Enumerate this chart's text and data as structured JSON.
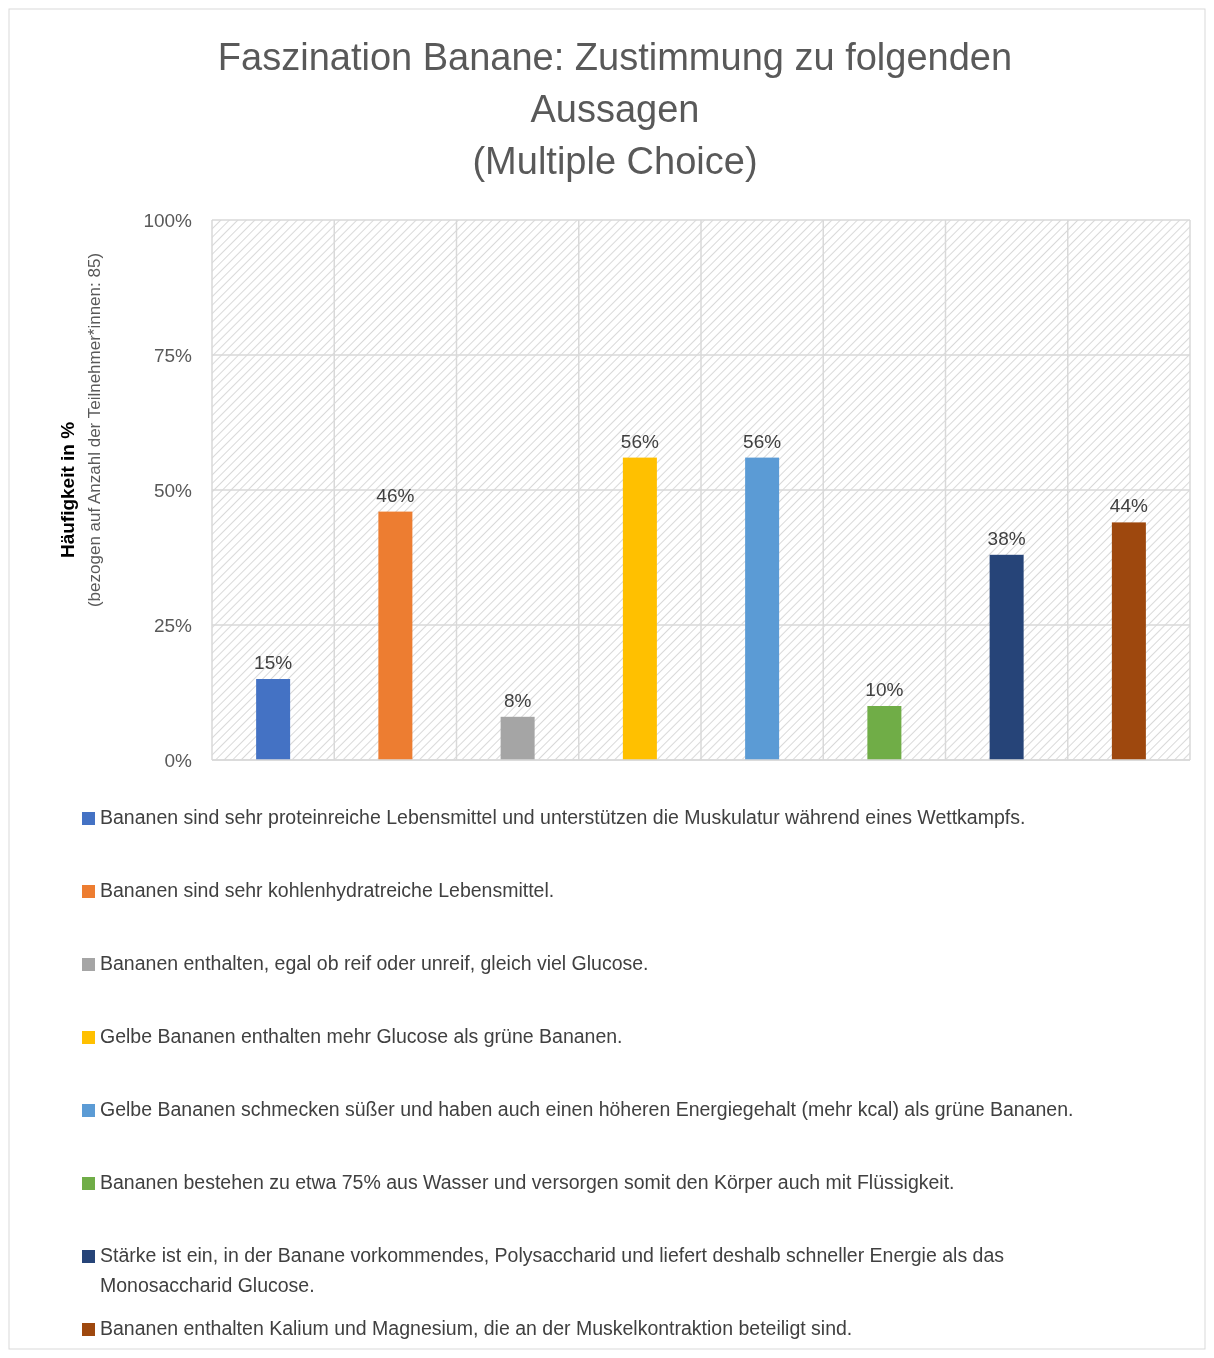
{
  "chart_data": {
    "type": "bar",
    "title": "Faszination Banane: Zustimmung zu folgenden Aussagen\n(Multiple Choice)",
    "ylabel": "Häufigkeit in %\n(bezogen auf Anzahl der Teilnehmer*innen: 85)",
    "categories": [
      null,
      null,
      null,
      null,
      null,
      null,
      null,
      null
    ],
    "series": [
      {
        "name": "Bananen sind sehr proteinreiche Lebensmittel und unterstützen die Muskulatur während eines Wettkampfs.",
        "color": "#4472c4",
        "values": [
          15,
          null,
          null,
          null,
          null,
          null,
          null,
          null
        ],
        "value_labels": [
          "15%",
          null,
          null,
          null,
          null,
          null,
          null,
          null
        ]
      },
      {
        "name": "Bananen sind sehr kohlenhydratreiche Lebensmittel.",
        "color": "#ed7d31",
        "values": [
          null,
          46,
          null,
          null,
          null,
          null,
          null,
          null
        ],
        "value_labels": [
          null,
          "46%",
          null,
          null,
          null,
          null,
          null,
          null
        ]
      },
      {
        "name": "Bananen enthalten, egal ob reif oder unreif, gleich viel Glucose.",
        "color": "#a5a5a5",
        "values": [
          null,
          null,
          8,
          null,
          null,
          null,
          null,
          null
        ],
        "value_labels": [
          null,
          null,
          "8%",
          null,
          null,
          null,
          null,
          null
        ]
      },
      {
        "name": "Gelbe Bananen enthalten mehr Glucose als grüne Bananen.",
        "color": "#ffc000",
        "values": [
          null,
          null,
          null,
          56,
          null,
          null,
          null,
          null
        ],
        "value_labels": [
          null,
          null,
          null,
          "56%",
          null,
          null,
          null,
          null
        ]
      },
      {
        "name": "Gelbe Bananen schmecken süßer und haben auch einen höheren Energiegehalt (mehr kcal) als grüne Bananen.",
        "color": "#5b9bd5",
        "values": [
          null,
          null,
          null,
          null,
          56,
          null,
          null,
          null
        ],
        "value_labels": [
          null,
          null,
          null,
          null,
          "56%",
          null,
          null,
          null
        ]
      },
      {
        "name": "Bananen bestehen zu etwa 75% aus Wasser und versorgen somit den Körper auch mit Flüssigkeit.",
        "color": "#70ad47",
        "values": [
          null,
          null,
          null,
          null,
          null,
          10,
          null,
          null
        ],
        "value_labels": [
          null,
          null,
          null,
          null,
          null,
          "10%",
          null,
          null
        ]
      },
      {
        "name": "Stärke ist ein, in der Banane vorkommendes, Polysaccharid und liefert deshalb schneller Energie als das Monosaccharid Glucose.",
        "color": "#264478",
        "values": [
          null,
          null,
          null,
          null,
          null,
          null,
          38,
          null
        ],
        "value_labels": [
          null,
          null,
          null,
          null,
          null,
          null,
          "38%",
          null
        ]
      },
      {
        "name": "Bananen enthalten Kalium und Magnesium, die an der Muskelkontraktion beteiligt sind.",
        "color": "#9e480e",
        "values": [
          null,
          null,
          null,
          null,
          null,
          null,
          null,
          44
        ],
        "value_labels": [
          null,
          null,
          null,
          null,
          null,
          null,
          null,
          "44%"
        ]
      }
    ],
    "ylim": [
      0,
      100
    ],
    "yticks": [
      {
        "value": 0,
        "label": "0%"
      },
      {
        "value": 25,
        "label": "25%"
      },
      {
        "value": 50,
        "label": "50%"
      },
      {
        "value": 75,
        "label": "75%"
      },
      {
        "value": 100,
        "label": "100%"
      }
    ],
    "grid": true,
    "legend": "bottom"
  }
}
